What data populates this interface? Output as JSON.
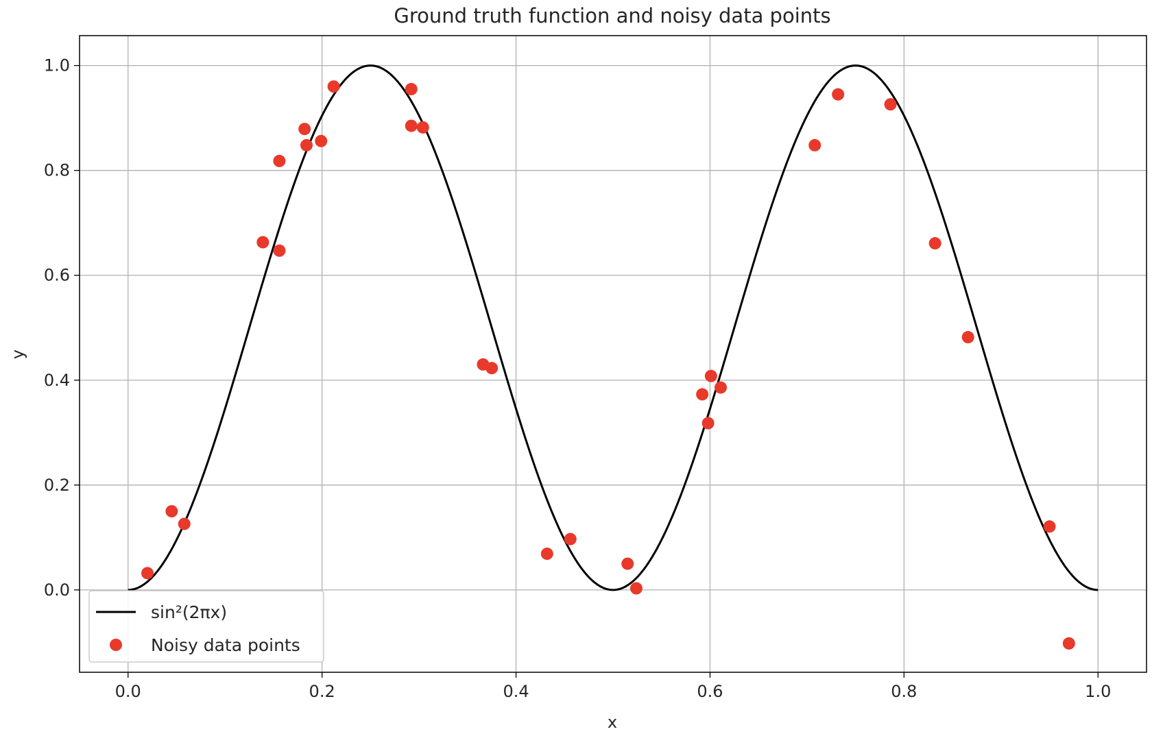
{
  "chart_data": {
    "type": "scatter",
    "title": "Ground truth function and noisy data points",
    "xlabel": "x",
    "ylabel": "y",
    "xlim": [
      -0.05,
      1.05
    ],
    "ylim": [
      -0.157,
      1.057
    ],
    "xticks": [
      {
        "value": 0.0,
        "label": "0.0"
      },
      {
        "value": 0.2,
        "label": "0.2"
      },
      {
        "value": 0.4,
        "label": "0.4"
      },
      {
        "value": 0.6,
        "label": "0.6"
      },
      {
        "value": 0.8,
        "label": "0.8"
      },
      {
        "value": 1.0,
        "label": "1.0"
      }
    ],
    "yticks": [
      {
        "value": 0.0,
        "label": "0.0"
      },
      {
        "value": 0.2,
        "label": "0.2"
      },
      {
        "value": 0.4,
        "label": "0.4"
      },
      {
        "value": 0.6,
        "label": "0.6"
      },
      {
        "value": 0.8,
        "label": "0.8"
      },
      {
        "value": 1.0,
        "label": "1.0"
      }
    ],
    "grid": true,
    "legend_position": "lower-left",
    "series": [
      {
        "name": "sin²(2πx)",
        "type": "line",
        "function": "sin^2(2*pi*x)",
        "domain": [
          0,
          1
        ],
        "color": "#000000"
      },
      {
        "name": "Noisy data points",
        "type": "scatter",
        "color": "#e8392a",
        "points": [
          {
            "x": 0.02,
            "y": 0.032
          },
          {
            "x": 0.045,
            "y": 0.15
          },
          {
            "x": 0.058,
            "y": 0.126
          },
          {
            "x": 0.139,
            "y": 0.663
          },
          {
            "x": 0.156,
            "y": 0.647
          },
          {
            "x": 0.156,
            "y": 0.818
          },
          {
            "x": 0.182,
            "y": 0.879
          },
          {
            "x": 0.184,
            "y": 0.848
          },
          {
            "x": 0.199,
            "y": 0.856
          },
          {
            "x": 0.212,
            "y": 0.96
          },
          {
            "x": 0.292,
            "y": 0.955
          },
          {
            "x": 0.292,
            "y": 0.885
          },
          {
            "x": 0.304,
            "y": 0.882
          },
          {
            "x": 0.366,
            "y": 0.43
          },
          {
            "x": 0.375,
            "y": 0.423
          },
          {
            "x": 0.432,
            "y": 0.069
          },
          {
            "x": 0.456,
            "y": 0.097
          },
          {
            "x": 0.515,
            "y": 0.05
          },
          {
            "x": 0.524,
            "y": 0.003
          },
          {
            "x": 0.592,
            "y": 0.373
          },
          {
            "x": 0.598,
            "y": 0.318
          },
          {
            "x": 0.601,
            "y": 0.408
          },
          {
            "x": 0.611,
            "y": 0.386
          },
          {
            "x": 0.708,
            "y": 0.848
          },
          {
            "x": 0.732,
            "y": 0.945
          },
          {
            "x": 0.786,
            "y": 0.926
          },
          {
            "x": 0.832,
            "y": 0.661
          },
          {
            "x": 0.866,
            "y": 0.482
          },
          {
            "x": 0.95,
            "y": 0.121
          },
          {
            "x": 0.97,
            "y": -0.102
          }
        ]
      }
    ]
  }
}
